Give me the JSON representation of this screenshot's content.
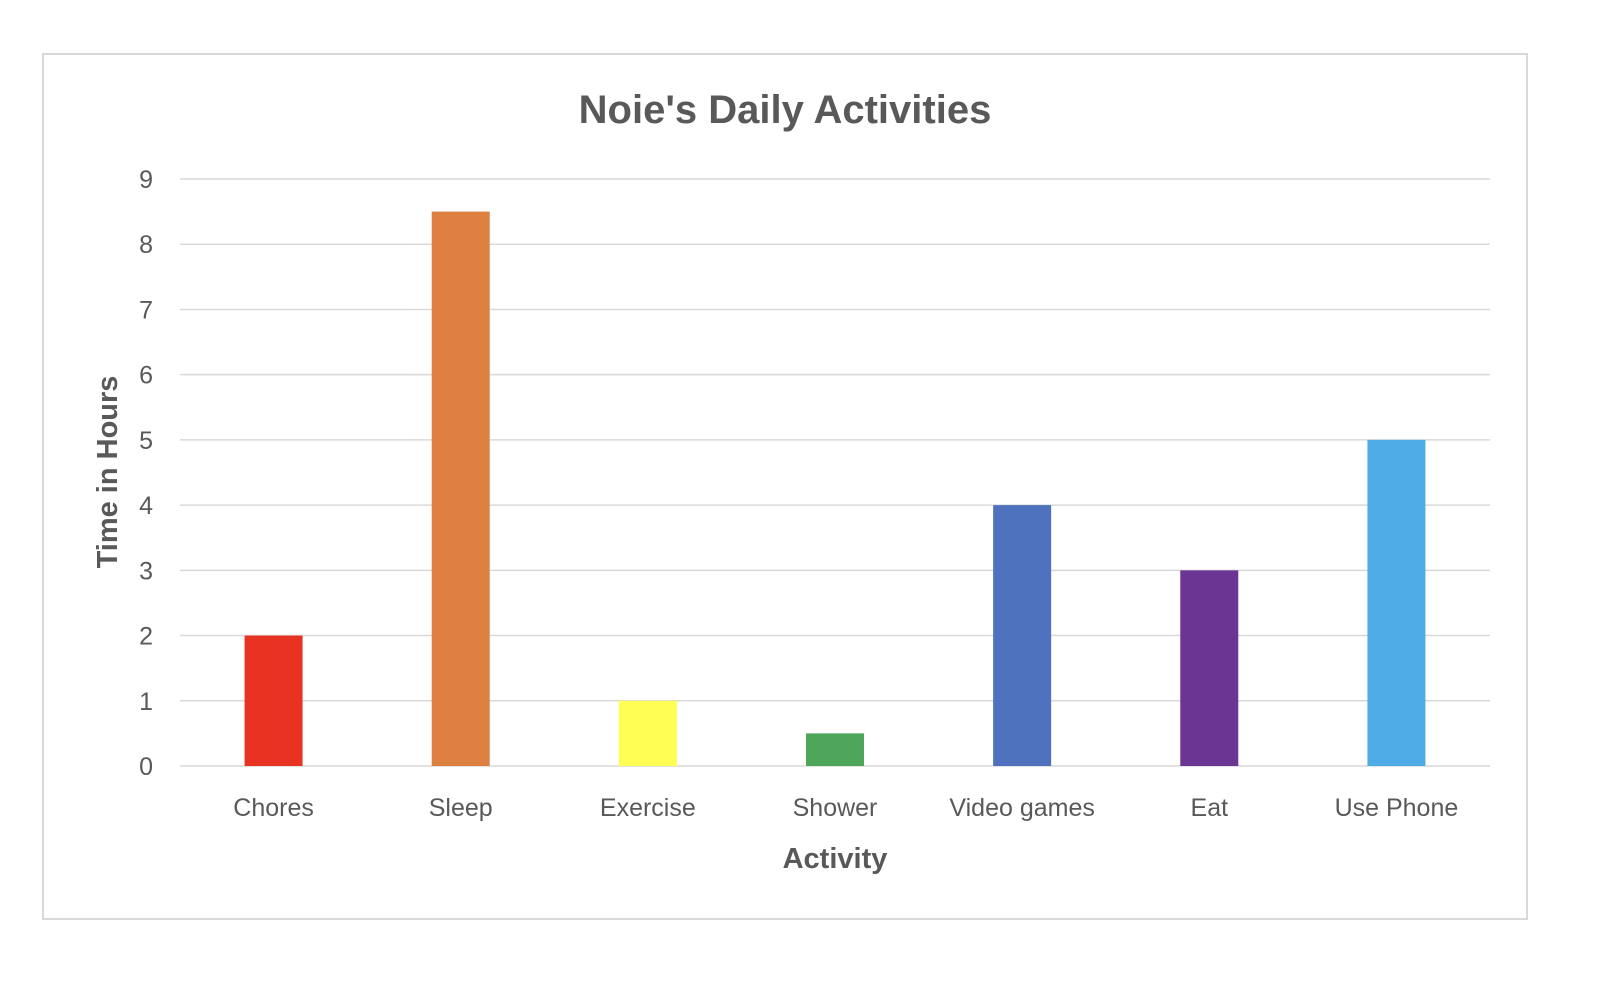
{
  "chart_data": {
    "type": "bar",
    "title": "Noie's Daily Activities",
    "xlabel": "Activity",
    "ylabel": "Time in Hours",
    "categories": [
      "Chores",
      "Sleep",
      "Exercise",
      "Shower",
      "Video games",
      "Eat",
      "Use Phone"
    ],
    "values": [
      2,
      8.5,
      1,
      0.5,
      4,
      3,
      5
    ],
    "colors": [
      "#e83323",
      "#dd8040",
      "#fefe55",
      "#4ea65a",
      "#4e72be",
      "#6a3593",
      "#4eabe6"
    ],
    "ylim": [
      0,
      9
    ],
    "yticks": [
      0,
      1,
      2,
      3,
      4,
      5,
      6,
      7,
      8,
      9
    ],
    "grid": true,
    "legend": "none"
  }
}
